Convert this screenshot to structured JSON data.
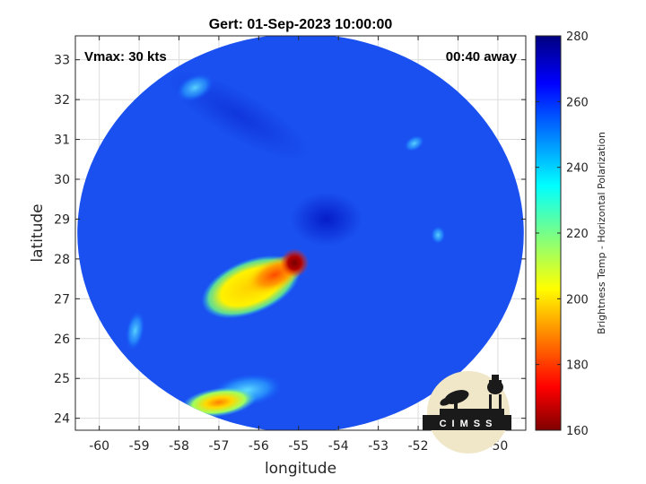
{
  "chart_data": {
    "type": "heatmap",
    "title": "Gert: 01-Sep-2023 10:00:00",
    "xlabel": "longitude",
    "ylabel": "latitude",
    "xlim": [
      -60.6,
      -49.3
    ],
    "ylim": [
      23.7,
      33.6
    ],
    "x_ticks": [
      -60,
      -59,
      -58,
      -57,
      -56,
      -55,
      -54,
      -53,
      -52,
      -51,
      -50
    ],
    "y_ticks": [
      24,
      25,
      26,
      27,
      28,
      29,
      30,
      31,
      32,
      33
    ],
    "grid": true,
    "annotations": {
      "left": "Vmax: 30 kts",
      "right": "00:40 away"
    },
    "colorbar": {
      "label": "Brightness Temp - Horizontal Polarization",
      "min": 160,
      "max": 280,
      "ticks": [
        160,
        180,
        200,
        220,
        240,
        260,
        280
      ],
      "colormap": "jet"
    },
    "swath": {
      "center_lon": -54.95,
      "center_lat": 28.65,
      "radius_lon": 5.6,
      "radius_lat": 5.0
    },
    "background_temp": 262,
    "features": [
      {
        "name": "convective-core",
        "lon": -55.1,
        "lat": 27.9,
        "temp": 168
      },
      {
        "name": "inner-band",
        "lon": -55.6,
        "lat": 27.6,
        "temp": 190
      },
      {
        "name": "outer-band",
        "lon": -56.2,
        "lat": 27.3,
        "temp": 208
      },
      {
        "name": "southern-cluster",
        "lon": -57.0,
        "lat": 24.4,
        "temp": 205
      },
      {
        "name": "southern-cluster-edge",
        "lon": -56.3,
        "lat": 24.7,
        "temp": 225
      },
      {
        "name": "northwest-patch",
        "lon": -57.6,
        "lat": 32.3,
        "temp": 240
      },
      {
        "name": "west-patch",
        "lon": -59.1,
        "lat": 26.2,
        "temp": 235
      },
      {
        "name": "northeast-patch",
        "lon": -52.1,
        "lat": 30.9,
        "temp": 240
      },
      {
        "name": "east-patch",
        "lon": -51.5,
        "lat": 28.6,
        "temp": 242
      }
    ]
  },
  "logo": {
    "text": "CIMSS"
  }
}
